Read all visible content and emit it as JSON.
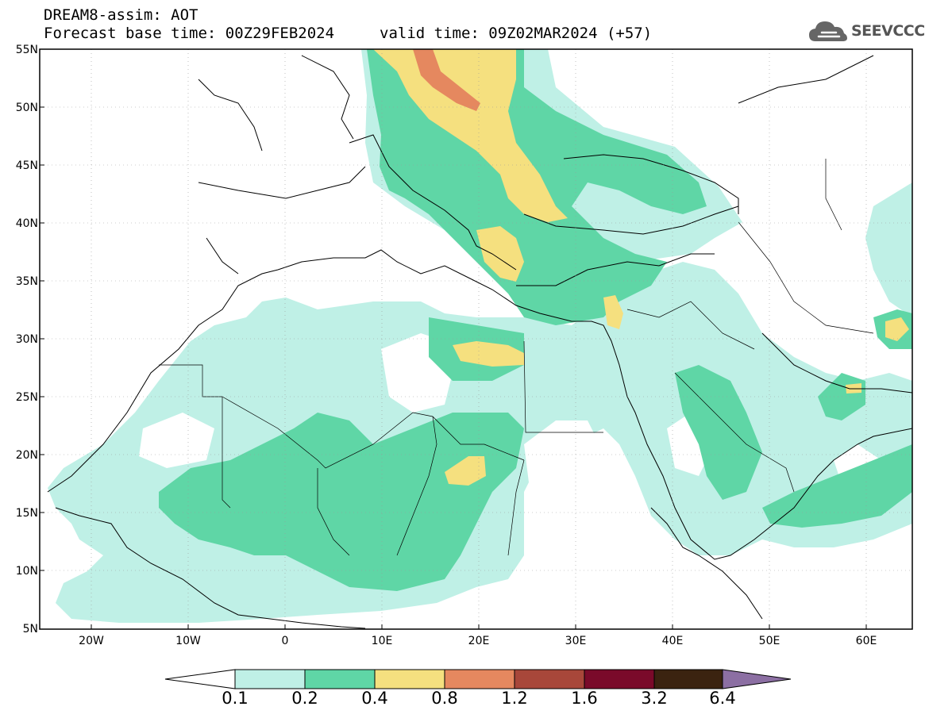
{
  "header": {
    "title": "DREAM8-assim: AOT",
    "base_time": "Forecast base time: 00Z29FEB2024",
    "valid_time": "valid time: 09Z02MAR2024 (+57)",
    "logo_text": "SEEVCCC",
    "logo_icon": "cloud-icon"
  },
  "map": {
    "lat_labels": [
      "55N",
      "50N",
      "45N",
      "40N",
      "35N",
      "30N",
      "25N",
      "20N",
      "15N",
      "10N",
      "5N"
    ],
    "lon_labels": [
      "20W",
      "10W",
      "0",
      "10E",
      "20E",
      "30E",
      "40E",
      "50E",
      "60E"
    ]
  },
  "colorbar": {
    "colors": [
      "#ffffff",
      "#bff0e6",
      "#5fd6a6",
      "#f5e07f",
      "#e5885f",
      "#a8473a",
      "#7a0a2a",
      "#3b2310",
      "#8c6fa3"
    ],
    "labels": [
      "0.1",
      "0.2",
      "0.4",
      "0.8",
      "1.2",
      "1.6",
      "3.2",
      "6.4"
    ]
  }
}
